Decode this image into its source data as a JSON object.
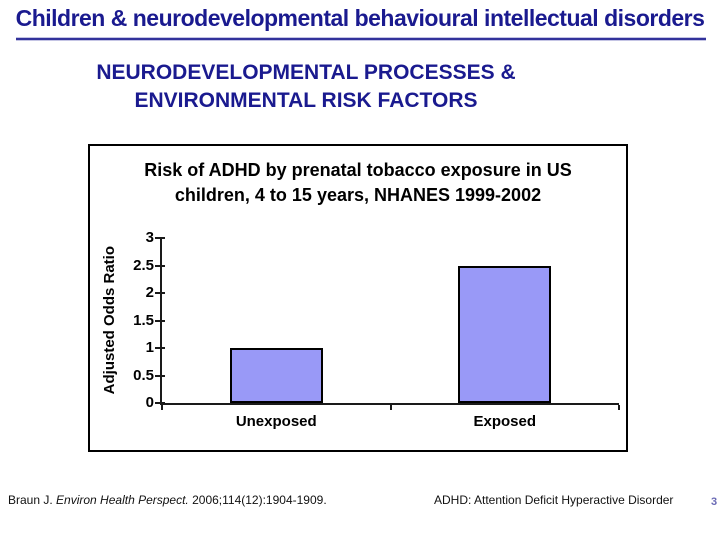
{
  "slide": {
    "title": "Children & neurodevelopmental behavioural intellectual disorders",
    "subtitle_line1": "NEURODEVELOPMENTAL PROCESSES &",
    "subtitle_line2": "ENVIRONMENTAL RISK FACTORS",
    "footer": {
      "citation_prefix": "Braun J. ",
      "citation_journal": "Environ Health Perspect.",
      "citation_suffix": " 2006;114(12):1904-1909.",
      "abbreviation_note": "ADHD: Attention Deficit Hyperactive Disorder",
      "slide_number": "3"
    },
    "colors": {
      "heading_text": "#1a1a8f",
      "bar_fill": "#9999f7",
      "bar_border": "#000000",
      "axis": "#1a1a1a",
      "chart_border": "#000000"
    }
  },
  "chart_data": {
    "type": "bar",
    "title_line1": "Risk of ADHD by prenatal tobacco exposure in US",
    "title_line2": "children, 4 to 15 years, NHANES 1999-2002",
    "categories": [
      "Unexposed",
      "Exposed"
    ],
    "values": [
      1,
      2.5
    ],
    "ylabel": "Adjusted Odds Ratio",
    "xlabel": "",
    "ylim": [
      0,
      3
    ],
    "yticks": [
      0,
      0.5,
      1,
      1.5,
      2,
      2.5,
      3
    ],
    "grid": false,
    "legend": false
  }
}
